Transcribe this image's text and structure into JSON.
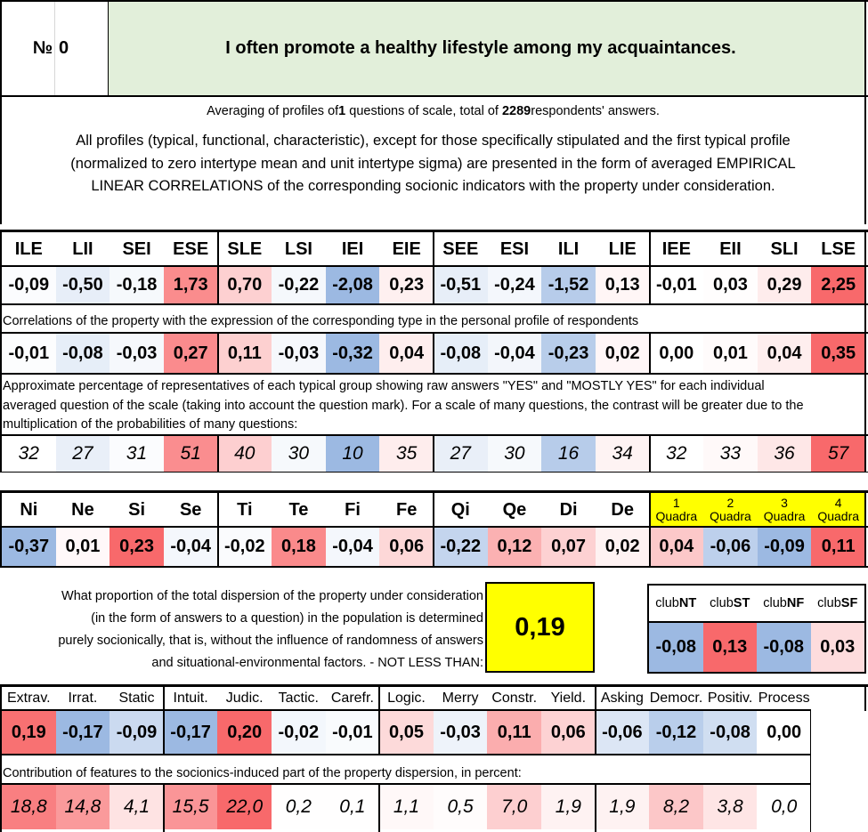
{
  "header": {
    "number_label": "№",
    "number_value": "0",
    "question": "I often promote a healthy lifestyle among my acquaintances."
  },
  "summary": {
    "pre": "Averaging of profiles of ",
    "questions_count": "1",
    "mid": " questions of scale, total of ",
    "respondents_count": "2289",
    "post": " respondents' answers."
  },
  "description": [
    "All profiles (typical, functional, characteristic), except for those specifically stipulated and the first typical profile",
    "(normalized to zero intertype mean and unit intertype sigma) are presented in the form of averaged EMPIRICAL",
    "LINEAR CORRELATIONS of the corresponding socionic indicators with the property under consideration."
  ],
  "types": {
    "labels": [
      "ILE",
      "LII",
      "SEI",
      "ESE",
      "SLE",
      "LSI",
      "IEI",
      "EIE",
      "SEE",
      "ESI",
      "ILI",
      "LIE",
      "IEE",
      "EII",
      "SLI",
      "LSE"
    ],
    "profile": [
      "-0,09",
      "-0,50",
      "-0,18",
      "1,73",
      "0,70",
      "-0,22",
      "-2,08",
      "0,23",
      "-0,51",
      "-0,24",
      "-1,52",
      "0,13",
      "-0,01",
      "0,03",
      "0,29",
      "2,25"
    ],
    "profile_numeric": [
      -0.09,
      -0.5,
      -0.18,
      1.73,
      0.7,
      -0.22,
      -2.08,
      0.23,
      -0.51,
      -0.24,
      -1.52,
      0.13,
      -0.01,
      0.03,
      0.29,
      2.25
    ],
    "correlation_note": "Correlations of the property with the expression of the corresponding type in the personal profile of respondents",
    "correlations": [
      "-0,01",
      "-0,08",
      "-0,03",
      "0,27",
      "0,11",
      "-0,03",
      "-0,32",
      "0,04",
      "-0,08",
      "-0,04",
      "-0,23",
      "0,02",
      "0,00",
      "0,01",
      "0,04",
      "0,35"
    ],
    "correlations_numeric": [
      -0.01,
      -0.08,
      -0.03,
      0.27,
      0.11,
      -0.03,
      -0.32,
      0.04,
      -0.08,
      -0.04,
      -0.23,
      0.02,
      0.0,
      0.01,
      0.04,
      0.35
    ],
    "percentage_note": [
      "Approximate percentage of representatives of each typical group showing raw answers \"YES\" and \"MOSTLY YES\" for each individual",
      "averaged question of the scale (taking into account the question mark). For a scale of many questions, the contrast will be greater due to the",
      "multiplication of the probabilities of many questions:"
    ],
    "percentages": [
      "32",
      "27",
      "31",
      "51",
      "40",
      "30",
      "10",
      "35",
      "27",
      "30",
      "16",
      "34",
      "32",
      "33",
      "36",
      "57"
    ],
    "percentages_numeric": [
      32,
      27,
      31,
      51,
      40,
      30,
      10,
      35,
      27,
      30,
      16,
      34,
      32,
      33,
      36,
      57
    ]
  },
  "functions": {
    "labels": [
      "Ni",
      "Ne",
      "Si",
      "Se",
      "Ti",
      "Te",
      "Fi",
      "Fe",
      "Qi",
      "Qe",
      "Di",
      "De"
    ],
    "values": [
      "-0,37",
      "0,01",
      "0,23",
      "-0,04",
      "-0,02",
      "0,18",
      "-0,04",
      "0,06",
      "-0,22",
      "0,12",
      "0,07",
      "0,02"
    ],
    "values_numeric": [
      -0.37,
      0.01,
      0.23,
      -0.04,
      -0.02,
      0.18,
      -0.04,
      0.06,
      -0.22,
      0.12,
      0.07,
      0.02
    ]
  },
  "quadras": {
    "labels": [
      {
        "num": "1",
        "word": "Quadra"
      },
      {
        "num": "2",
        "word": "Quadra"
      },
      {
        "num": "3",
        "word": "Quadra"
      },
      {
        "num": "4",
        "word": "Quadra"
      }
    ],
    "values": [
      "0,04",
      "-0,06",
      "-0,09",
      "0,11"
    ],
    "values_numeric": [
      0.04,
      -0.06,
      -0.09,
      0.11
    ],
    "header_color": "#ffff00"
  },
  "dispersion": {
    "text": [
      "What proportion of the total dispersion of the property under consideration",
      "(in the form of answers to a question) in the population is determined",
      "purely socionically, that is, without the influence of randomness of answers",
      "and situational-environmental factors. - NOT LESS THAN:"
    ],
    "value": "0,19",
    "box_color": "#ffff00"
  },
  "clubs": {
    "labels": [
      {
        "pre": "club",
        "bold": "NT"
      },
      {
        "pre": "club",
        "bold": "ST"
      },
      {
        "pre": "club",
        "bold": "NF"
      },
      {
        "pre": "club",
        "bold": "SF"
      }
    ],
    "values": [
      "-0,08",
      "0,13",
      "-0,08",
      "0,03"
    ],
    "values_numeric": [
      -0.08,
      0.13,
      -0.08,
      0.03
    ]
  },
  "features": {
    "labels": [
      "Extrav.",
      "Irrat.",
      "Static",
      "Intuit.",
      "Judic.",
      "Tactic.",
      "Carefr.",
      "Logic.",
      "Merry",
      "Constr.",
      "Yield.",
      "Asking",
      "Democr.",
      "Positiv.",
      "Process"
    ],
    "values": [
      "0,19",
      "-0,17",
      "-0,09",
      "-0,17",
      "0,20",
      "-0,02",
      "-0,01",
      "0,05",
      "-0,03",
      "0,11",
      "0,06",
      "-0,06",
      "-0,12",
      "-0,08",
      "0,00"
    ],
    "values_numeric": [
      0.19,
      -0.17,
      -0.09,
      -0.17,
      0.2,
      -0.02,
      -0.01,
      0.05,
      -0.03,
      0.11,
      0.06,
      -0.06,
      -0.12,
      -0.08,
      0.0
    ],
    "contribution_note": "Contribution of features to the socionics-induced part of the property dispersion, in percent:",
    "contributions": [
      "18,8",
      "14,8",
      "4,1",
      "15,5",
      "22,0",
      "0,2",
      "0,1",
      "1,1",
      "0,5",
      "7,0",
      "1,9",
      "1,9",
      "8,2",
      "3,8",
      "0,0"
    ],
    "contributions_numeric": [
      18.8,
      14.8,
      4.1,
      15.5,
      22.0,
      0.2,
      0.1,
      1.1,
      0.5,
      7.0,
      1.9,
      1.9,
      8.2,
      3.8,
      0.0
    ]
  },
  "colors": {
    "title_bg": "#e2efda",
    "positive": "#f8696b",
    "negative": "#9cb9e2",
    "neutral": "#ffffff"
  }
}
